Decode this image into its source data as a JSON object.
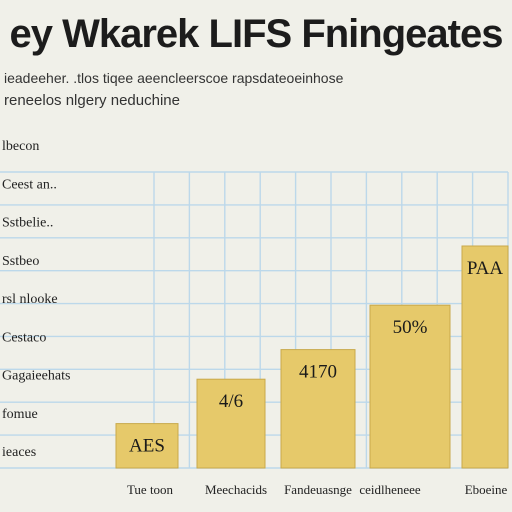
{
  "title": "ey Wkarek LIFS Fningeates",
  "subtitle_lines": [
    "ieadeeher. .tlos   tiqee aeencleerscoe rapsdateoeinhose",
    "reneelos nlgery neduchine"
  ],
  "chart_data": {
    "type": "bar",
    "title": "ey Wkarek LIFS Fningeates",
    "y_labels": [
      "lbecon",
      "Ceest an..",
      "Sstbelie..",
      "Sstbeo",
      "rsl nlooke",
      "Cestaco",
      "Gagaieehats",
      "fomue",
      "ieaces"
    ],
    "categories": [
      "Tue toon",
      "Meechacids",
      "Fandeuasnge",
      "ceidlheneee",
      "Eboeine"
    ],
    "values": [
      15,
      30,
      40,
      55,
      75
    ],
    "data_labels": [
      "AES",
      "4/6",
      "4170",
      "50%",
      "PAA"
    ],
    "ylim": [
      0,
      100
    ],
    "grid": true,
    "bar_color": "#e6c96a",
    "grid_color": "#bcd8ea"
  }
}
